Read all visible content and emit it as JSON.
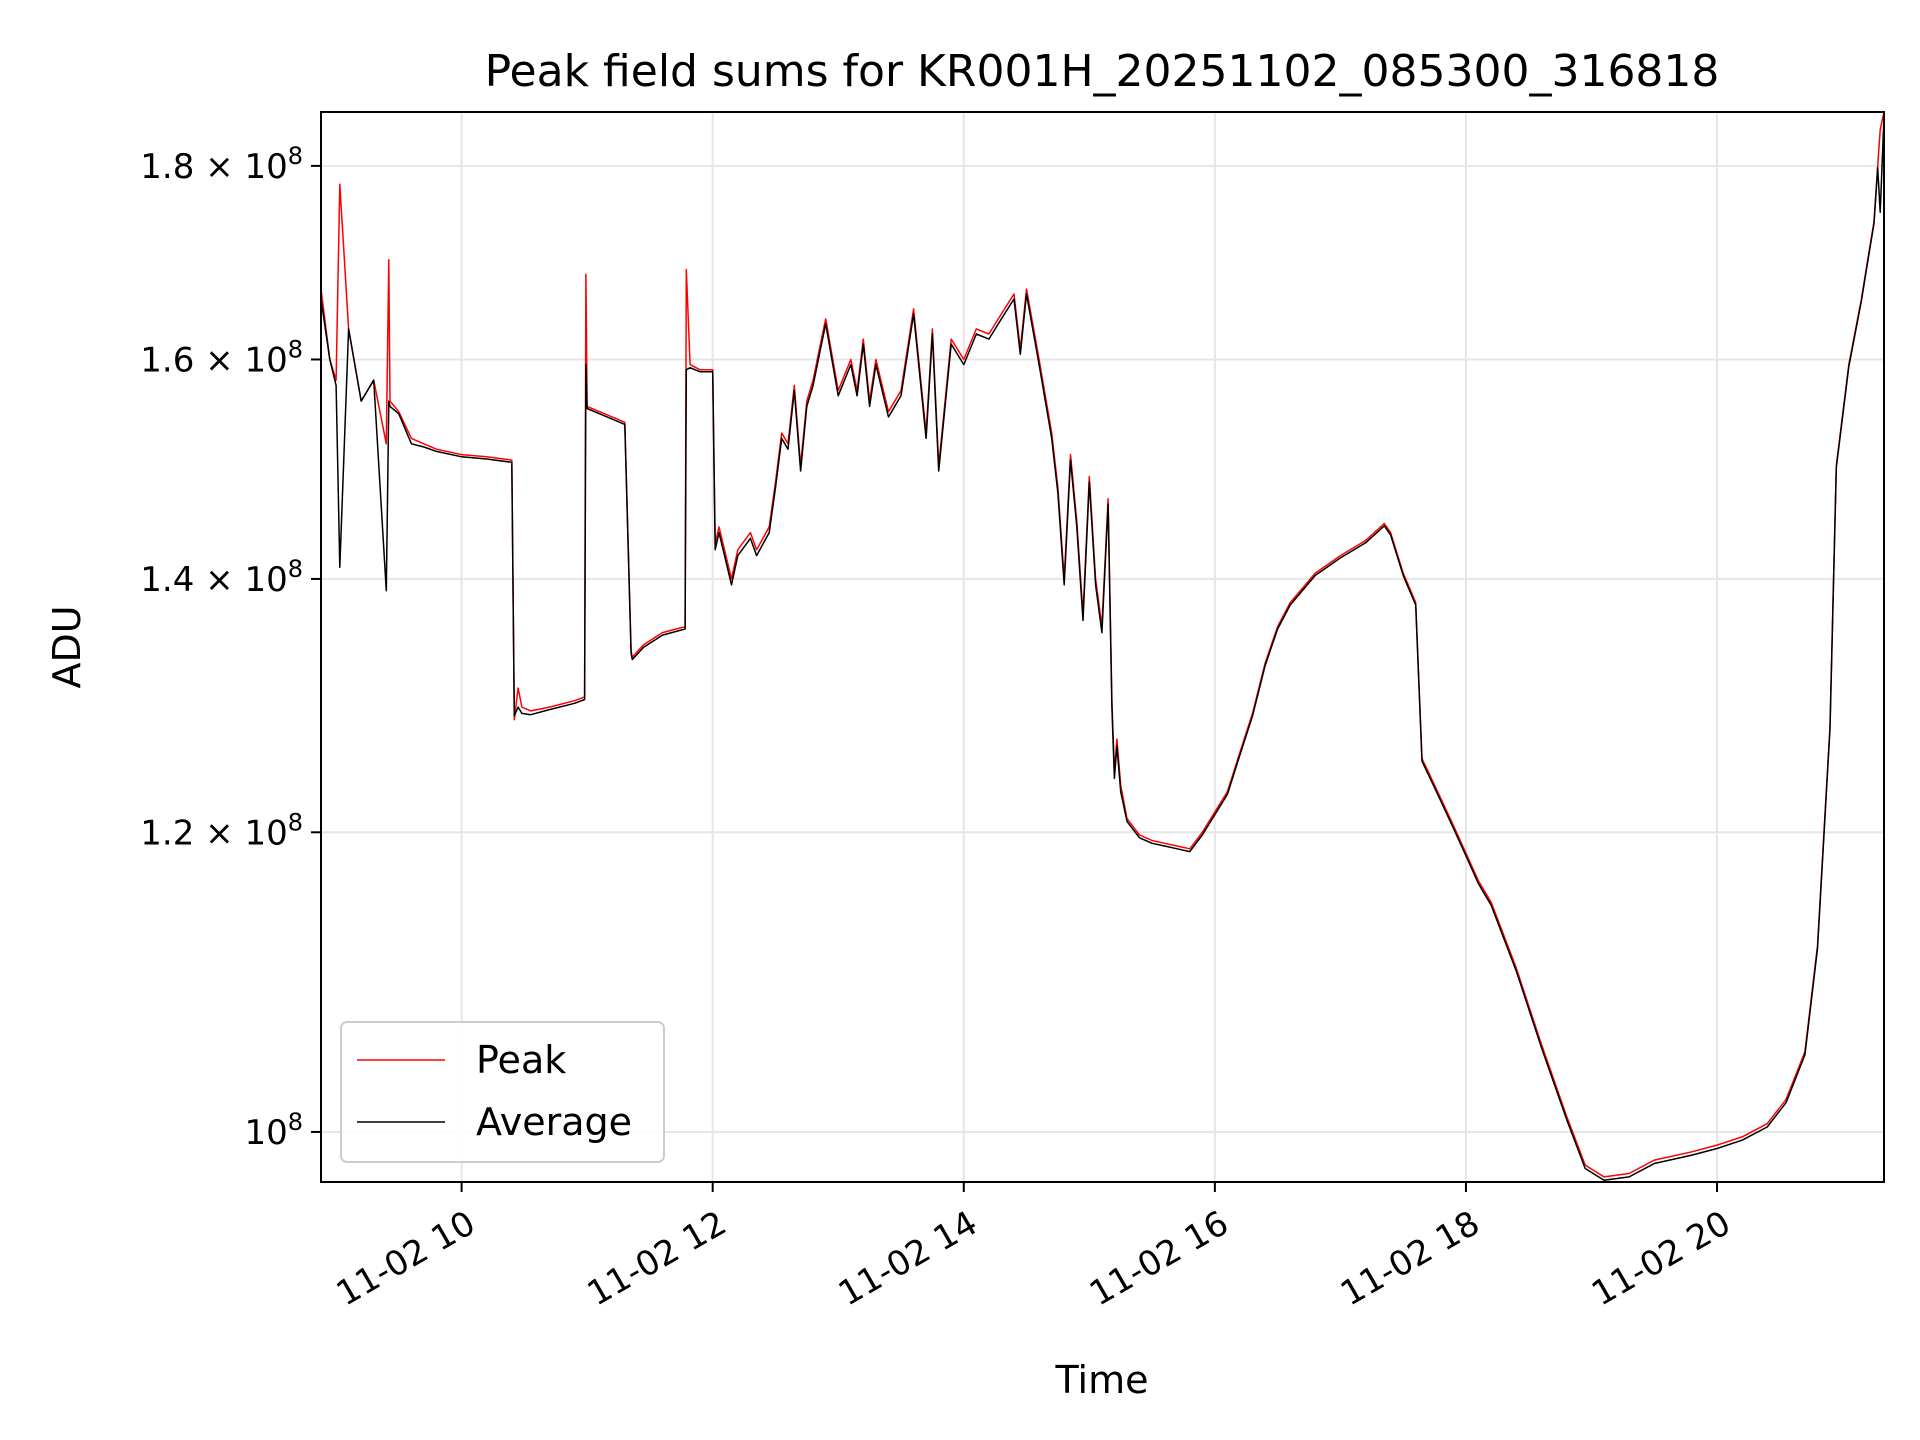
{
  "chart_data": {
    "type": "line",
    "title": "Peak field sums for KR001H_20251102_085300_316818",
    "xlabel": "Time",
    "ylabel": "ADU",
    "yscale": "log",
    "xlim": [
      8.88,
      21.33
    ],
    "ylim": [
      97000000,
      186000000
    ],
    "grid": true,
    "legend_position": "lower-left",
    "x_ticks": [
      {
        "value": 10,
        "label": "11-02 10"
      },
      {
        "value": 12,
        "label": "11-02 12"
      },
      {
        "value": 14,
        "label": "11-02 14"
      },
      {
        "value": 16,
        "label": "11-02 16"
      },
      {
        "value": 18,
        "label": "11-02 18"
      },
      {
        "value": 20,
        "label": "11-02 20"
      }
    ],
    "y_ticks": [
      {
        "value": 100000000,
        "mantissa": "",
        "exponent": "8",
        "base": "10"
      },
      {
        "value": 120000000,
        "mantissa": "1.2",
        "exponent": "8",
        "base": "10"
      },
      {
        "value": 140000000,
        "mantissa": "1.4",
        "exponent": "8",
        "base": "10"
      },
      {
        "value": 160000000,
        "mantissa": "1.6",
        "exponent": "8",
        "base": "10"
      },
      {
        "value": 180000000,
        "mantissa": "1.8",
        "exponent": "8",
        "base": "10"
      }
    ],
    "series": [
      {
        "name": "Peak",
        "color": "#ff0000",
        "x": [
          8.88,
          8.95,
          9.0,
          9.03,
          9.1,
          9.2,
          9.3,
          9.4,
          9.42,
          9.43,
          9.5,
          9.6,
          9.7,
          9.8,
          10.0,
          10.2,
          10.4,
          10.42,
          10.45,
          10.48,
          10.55,
          10.7,
          10.9,
          10.98,
          10.99,
          11.0,
          11.1,
          11.3,
          11.35,
          11.36,
          11.45,
          11.6,
          11.78,
          11.79,
          11.82,
          11.9,
          12.0,
          12.02,
          12.05,
          12.15,
          12.2,
          12.3,
          12.35,
          12.45,
          12.5,
          12.55,
          12.6,
          12.65,
          12.7,
          12.75,
          12.8,
          12.85,
          12.9,
          13.0,
          13.1,
          13.15,
          13.2,
          13.25,
          13.3,
          13.4,
          13.5,
          13.6,
          13.7,
          13.75,
          13.8,
          13.9,
          14.0,
          14.1,
          14.2,
          14.3,
          14.4,
          14.45,
          14.5,
          14.6,
          14.7,
          14.75,
          14.8,
          14.85,
          14.9,
          14.95,
          15.0,
          15.05,
          15.1,
          15.15,
          15.18,
          15.2,
          15.22,
          15.25,
          15.3,
          15.4,
          15.5,
          15.6,
          15.7,
          15.8,
          15.9,
          16.0,
          16.1,
          16.2,
          16.3,
          16.4,
          16.5,
          16.6,
          16.8,
          17.0,
          17.2,
          17.35,
          17.4,
          17.5,
          17.6,
          17.65,
          17.7,
          17.8,
          17.9,
          18.0,
          18.1,
          18.2,
          18.4,
          18.6,
          18.8,
          18.95,
          19.1,
          19.3,
          19.5,
          19.8,
          20.0,
          20.2,
          20.4,
          20.55,
          20.7,
          20.8,
          20.9,
          20.95,
          21.05,
          21.15,
          21.2,
          21.25,
          21.28,
          21.3,
          21.33
        ],
        "y": [
          167000000,
          160000000,
          158000000,
          178000000,
          163000000,
          156000000,
          158000000,
          152000000,
          170000000,
          156000000,
          155000000,
          152500000,
          152000000,
          151500000,
          151000000,
          150800000,
          150500000,
          128500000,
          131000000,
          129500000,
          129200000,
          129500000,
          130000000,
          130300000,
          168500000,
          155500000,
          155000000,
          154000000,
          134000000,
          133500000,
          134500000,
          135500000,
          136000000,
          169000000,
          159500000,
          159000000,
          159000000,
          143000000,
          144500000,
          140000000,
          142500000,
          144000000,
          142500000,
          144500000,
          148500000,
          153000000,
          152000000,
          157500000,
          150000000,
          156000000,
          158000000,
          161000000,
          164000000,
          157000000,
          160000000,
          157000000,
          162000000,
          156000000,
          160000000,
          155000000,
          157000000,
          165000000,
          153000000,
          163000000,
          150000000,
          162000000,
          160000000,
          163000000,
          162500000,
          164500000,
          166500000,
          161000000,
          167000000,
          160000000,
          153000000,
          148000000,
          140000000,
          151000000,
          145000000,
          137000000,
          149000000,
          140000000,
          136000000,
          147000000,
          130000000,
          124500000,
          127000000,
          123500000,
          121000000,
          119800000,
          119400000,
          119200000,
          119000000,
          118800000,
          120000000,
          121500000,
          123000000,
          126000000,
          129000000,
          133000000,
          136000000,
          138000000,
          140500000,
          142000000,
          143300000,
          144800000,
          144000000,
          140500000,
          138000000,
          125500000,
          124500000,
          122500000,
          120500000,
          118500000,
          116500000,
          115000000,
          110500000,
          105500000,
          101000000,
          98000000,
          97300000,
          97500000,
          98300000,
          98800000,
          99200000,
          99700000,
          100500000,
          102000000,
          105000000,
          112000000,
          128000000,
          150000000,
          159500000,
          166000000,
          170000000,
          174000000,
          180000000,
          184000000,
          186000000
        ]
      },
      {
        "name": "Average",
        "color": "#000000",
        "x": [
          8.88,
          8.95,
          9.0,
          9.03,
          9.1,
          9.2,
          9.3,
          9.4,
          9.42,
          9.43,
          9.5,
          9.6,
          9.7,
          9.8,
          10.0,
          10.2,
          10.4,
          10.42,
          10.45,
          10.48,
          10.55,
          10.7,
          10.9,
          10.98,
          10.99,
          11.0,
          11.1,
          11.3,
          11.35,
          11.36,
          11.45,
          11.6,
          11.78,
          11.79,
          11.82,
          11.9,
          12.0,
          12.02,
          12.05,
          12.15,
          12.2,
          12.3,
          12.35,
          12.45,
          12.5,
          12.55,
          12.6,
          12.65,
          12.7,
          12.75,
          12.8,
          12.85,
          12.9,
          13.0,
          13.1,
          13.15,
          13.2,
          13.25,
          13.3,
          13.4,
          13.5,
          13.6,
          13.7,
          13.75,
          13.8,
          13.9,
          14.0,
          14.1,
          14.2,
          14.3,
          14.4,
          14.45,
          14.5,
          14.6,
          14.7,
          14.75,
          14.8,
          14.85,
          14.9,
          14.95,
          15.0,
          15.05,
          15.1,
          15.15,
          15.18,
          15.2,
          15.22,
          15.25,
          15.3,
          15.4,
          15.5,
          15.6,
          15.7,
          15.8,
          15.9,
          16.0,
          16.1,
          16.2,
          16.3,
          16.4,
          16.5,
          16.6,
          16.8,
          17.0,
          17.2,
          17.35,
          17.4,
          17.5,
          17.6,
          17.65,
          17.7,
          17.8,
          17.9,
          18.0,
          18.1,
          18.2,
          18.4,
          18.6,
          18.8,
          18.95,
          19.1,
          19.3,
          19.5,
          19.8,
          20.0,
          20.2,
          20.4,
          20.55,
          20.7,
          20.8,
          20.9,
          20.95,
          21.05,
          21.15,
          21.2,
          21.25,
          21.28,
          21.3,
          21.33
        ],
        "y": [
          166000000,
          160000000,
          157500000,
          141000000,
          163000000,
          156000000,
          158000000,
          139000000,
          156000000,
          155500000,
          154800000,
          152000000,
          151700000,
          151300000,
          150800000,
          150600000,
          150300000,
          128800000,
          129500000,
          129000000,
          128900000,
          129300000,
          129800000,
          130100000,
          159500000,
          155300000,
          154800000,
          153800000,
          133800000,
          133300000,
          134300000,
          135300000,
          135800000,
          159000000,
          159200000,
          158800000,
          158800000,
          142500000,
          144000000,
          139500000,
          142000000,
          143500000,
          142000000,
          144000000,
          148000000,
          152500000,
          151500000,
          157000000,
          149500000,
          155500000,
          157500000,
          160500000,
          163500000,
          156500000,
          159500000,
          156500000,
          161500000,
          155500000,
          159500000,
          154500000,
          156500000,
          164500000,
          152500000,
          162500000,
          149500000,
          161500000,
          159500000,
          162500000,
          162000000,
          164000000,
          166000000,
          160500000,
          166500000,
          159500000,
          152500000,
          147500000,
          139500000,
          150500000,
          144500000,
          136500000,
          148500000,
          139500000,
          135500000,
          146500000,
          129500000,
          124000000,
          126500000,
          123000000,
          120800000,
          119600000,
          119200000,
          119000000,
          118800000,
          118600000,
          119800000,
          121300000,
          122800000,
          125800000,
          128800000,
          132800000,
          135800000,
          137800000,
          140300000,
          141800000,
          143100000,
          144600000,
          143800000,
          140300000,
          137800000,
          125300000,
          124300000,
          122300000,
          120300000,
          118300000,
          116300000,
          114800000,
          110300000,
          105300000,
          100800000,
          97800000,
          97100000,
          97300000,
          98100000,
          98600000,
          99000000,
          99500000,
          100300000,
          101800000,
          104800000,
          111800000,
          127800000,
          149800000,
          159300000,
          165800000,
          169800000,
          173800000,
          179800000,
          175000000,
          185500000
        ]
      }
    ]
  }
}
